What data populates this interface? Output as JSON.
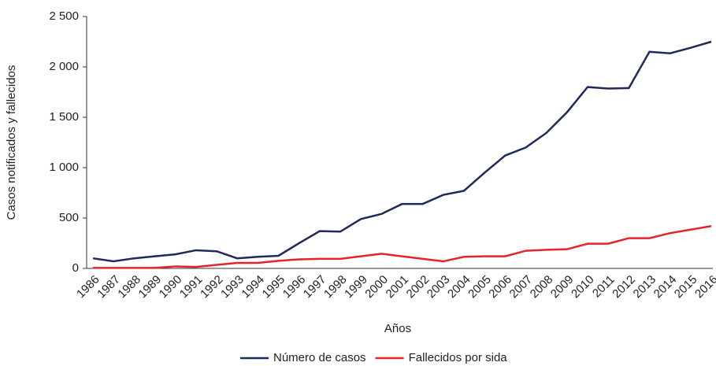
{
  "chart_data": {
    "type": "line",
    "x_label": "Años",
    "y_label": "Casos notificados y fallecidos",
    "categories": [
      "1986",
      "1987",
      "1988",
      "1989",
      "1990",
      "1991",
      "1992",
      "1993",
      "1994",
      "1995",
      "1996",
      "1997",
      "1998",
      "1999",
      "2000",
      "2001",
      "2002",
      "2003",
      "2004",
      "2005",
      "2006",
      "2007",
      "2008",
      "2009",
      "2010",
      "2011",
      "2012",
      "2013",
      "2014",
      "2015",
      "2016"
    ],
    "series": [
      {
        "name": "Número de casos",
        "color": "#1f2a5a",
        "values": [
          100,
          70,
          100,
          120,
          140,
          180,
          170,
          100,
          115,
          125,
          250,
          370,
          365,
          490,
          540,
          640,
          640,
          730,
          770,
          950,
          1120,
          1200,
          1345,
          1550,
          1800,
          1785,
          1790,
          2150,
          2135,
          2190,
          2250
        ]
      },
      {
        "name": "Fallecidos por sida",
        "color": "#e8222a",
        "values": [
          5,
          5,
          5,
          5,
          20,
          15,
          35,
          55,
          55,
          75,
          90,
          95,
          95,
          120,
          145,
          120,
          95,
          70,
          115,
          120,
          120,
          175,
          185,
          190,
          245,
          245,
          300,
          300,
          350,
          385,
          420
        ]
      }
    ],
    "ylim": [
      0,
      2500
    ],
    "yticks": [
      0,
      500,
      {
        "value": 1000,
        "label": "1 000"
      },
      {
        "value": 1500,
        "label": "1 500"
      },
      {
        "value": 2000,
        "label": "2 000"
      },
      {
        "value": 2500,
        "label": "2 500"
      }
    ],
    "legend": "bottom"
  }
}
